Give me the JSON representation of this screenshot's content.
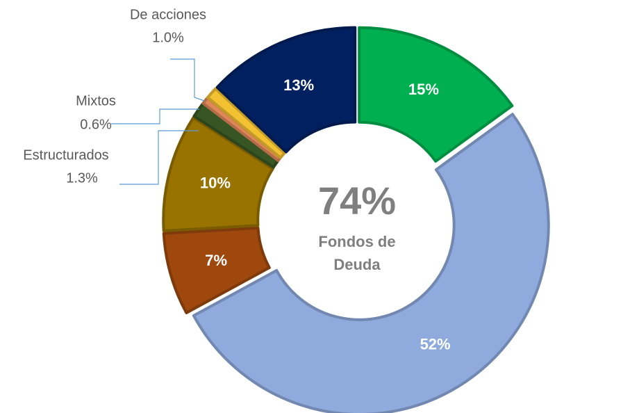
{
  "chart_data": {
    "type": "donut",
    "categories": [
      null,
      null,
      null,
      null,
      "Estructurados",
      "Mixtos",
      "De acciones",
      null
    ],
    "values": [
      15,
      52,
      7,
      10,
      1.3,
      0.6,
      1.0,
      13
    ],
    "value_labels": [
      "15%",
      "52%",
      "7%",
      "10%",
      "1.3%",
      "0.6%",
      "1.0%",
      "13%"
    ],
    "colors": [
      "#00b050",
      "#8faadc",
      "#9e480e",
      "#997300",
      "#375623",
      "#e0875a",
      "#f2c232",
      "#002060"
    ],
    "center_label": "74%",
    "center_caption": [
      "Fondos de",
      "Deuda"
    ]
  }
}
